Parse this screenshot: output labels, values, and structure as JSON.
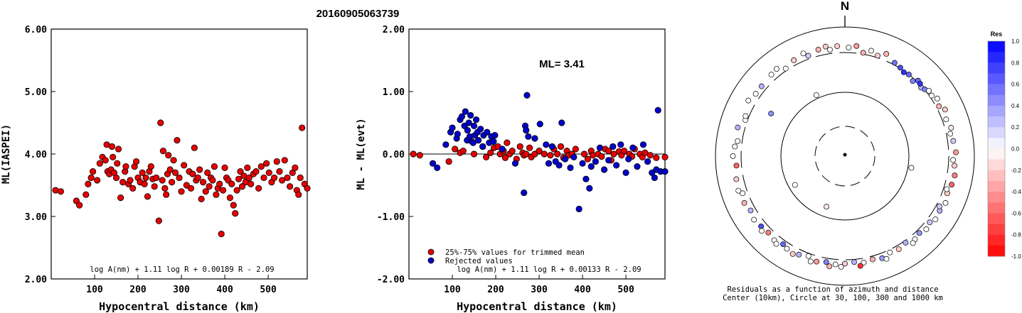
{
  "figure": {
    "title": "20160905063739"
  },
  "colors": {
    "red_fill": "#e60000",
    "blue_fill": "#0000cc",
    "frame": "#000000"
  },
  "chart_data": [
    {
      "type": "scatter",
      "name": "left",
      "xlabel": "Hypocentral distance (km)",
      "ylabel": "ML(IASPEI)",
      "xlim": [
        0,
        590
      ],
      "ylim": [
        2.0,
        6.0
      ],
      "xticks": [
        100,
        200,
        300,
        400,
        500
      ],
      "yticks": [
        2.0,
        3.0,
        4.0,
        5.0,
        6.0
      ],
      "ytick_labels": [
        "2.00",
        "3.00",
        "4.00",
        "5.00",
        "6.00"
      ],
      "formula": "log A(nm) + 1.11 log R + 0.00189 R - 2.09",
      "series": [
        {
          "marker": "red",
          "x": [
            10,
            22,
            58,
            65,
            80,
            85,
            92,
            96,
            106,
            112,
            118,
            125,
            128,
            130,
            134,
            138,
            140,
            142,
            145,
            150,
            152,
            155,
            160,
            165,
            170,
            172,
            178,
            182,
            188,
            192,
            196,
            200,
            205,
            210,
            215,
            218,
            222,
            226,
            230,
            234,
            238,
            242,
            248,
            252,
            256,
            258,
            262,
            265,
            268,
            270,
            274,
            278,
            282,
            286,
            290,
            295,
            300,
            306,
            312,
            318,
            322,
            326,
            330,
            334,
            338,
            342,
            346,
            350,
            356,
            360,
            364,
            368,
            372,
            376,
            380,
            384,
            388,
            392,
            396,
            400,
            404,
            408,
            412,
            416,
            420,
            424,
            428,
            432,
            436,
            440,
            444,
            448,
            452,
            456,
            460,
            466,
            472,
            478,
            484,
            490,
            496,
            502,
            508,
            514,
            520,
            526,
            532,
            538,
            544,
            550,
            556,
            562,
            566,
            570,
            574,
            578,
            584,
            590
          ],
          "y": [
            3.42,
            3.4,
            3.25,
            3.18,
            3.35,
            3.52,
            3.62,
            3.72,
            3.58,
            3.85,
            3.95,
            3.9,
            4.15,
            3.72,
            3.68,
            3.75,
            4.12,
            3.95,
            3.7,
            3.62,
            3.85,
            4.08,
            3.3,
            3.55,
            3.72,
            3.8,
            3.52,
            3.58,
            3.45,
            3.8,
            3.88,
            3.62,
            3.55,
            3.7,
            3.52,
            3.62,
            3.32,
            3.72,
            3.8,
            3.6,
            3.48,
            3.62,
            2.93,
            4.5,
            3.58,
            4.05,
            3.45,
            3.35,
            3.68,
            3.98,
            3.75,
            3.55,
            3.9,
            3.7,
            4.22,
            3.62,
            3.4,
            3.82,
            3.5,
            3.72,
            3.45,
            3.68,
            4.1,
            3.58,
            3.62,
            3.75,
            3.28,
            3.55,
            3.4,
            3.7,
            3.48,
            3.62,
            3.58,
            3.8,
            3.35,
            3.45,
            3.52,
            2.72,
            3.42,
            3.78,
            3.62,
            3.58,
            3.3,
            3.52,
            3.18,
            3.05,
            3.42,
            3.6,
            3.72,
            3.48,
            3.65,
            3.55,
            3.78,
            3.62,
            3.52,
            3.68,
            3.72,
            3.45,
            3.8,
            3.62,
            3.85,
            3.7,
            3.55,
            3.62,
            3.88,
            3.72,
            3.58,
            3.9,
            3.62,
            3.48,
            3.7,
            3.78,
            3.42,
            3.35,
            3.62,
            4.42,
            3.52,
            3.45
          ]
        }
      ]
    },
    {
      "type": "scatter",
      "name": "middle",
      "xlabel": "Hypocentral distance (km)",
      "ylabel": "ML - ML(evt)",
      "xlim": [
        0,
        590
      ],
      "ylim": [
        -2.0,
        2.0
      ],
      "xticks": [
        100,
        200,
        300,
        400,
        500
      ],
      "yticks": [
        -2.0,
        -1.0,
        0.0,
        1.0,
        2.0
      ],
      "ytick_labels": [
        "-2.00",
        "-1.00",
        "0.00",
        "1.00",
        "2.00"
      ],
      "annotation": "ML= 3.41",
      "formula": "log A(nm) + 1.11 log R + 0.00133 R - 2.09",
      "legend": [
        {
          "marker": "red",
          "label": "25%-75% values for trimmed mean"
        },
        {
          "marker": "blue",
          "label": "Rejected values"
        }
      ],
      "series": [
        {
          "marker": "red",
          "x": [
            10,
            25,
            92,
            106,
            118,
            125,
            150,
            170,
            178,
            188,
            196,
            205,
            210,
            218,
            222,
            226,
            232,
            238,
            248,
            256,
            262,
            265,
            270,
            278,
            282,
            290,
            300,
            312,
            326,
            334,
            342,
            350,
            356,
            364,
            368,
            376,
            384,
            404,
            412,
            420,
            424,
            436,
            444,
            452,
            460,
            466,
            472,
            484,
            490,
            496,
            508,
            514,
            520,
            532,
            538,
            544,
            556,
            570,
            590
          ],
          "y": [
            0.0,
            -0.02,
            -0.12,
            0.08,
            0.02,
            0.05,
            0.0,
            0.12,
            -0.05,
            0.02,
            0.1,
            0.12,
            0.0,
            0.05,
            -0.06,
            0.18,
            0.0,
            0.05,
            -0.08,
            0.12,
            0.02,
            -0.02,
            0.0,
            0.1,
            -0.05,
            0.0,
            0.05,
            0.0,
            -0.02,
            0.08,
            0.0,
            0.12,
            -0.06,
            0.05,
            -0.02,
            0.0,
            0.08,
            0.0,
            -0.08,
            0.05,
            -0.02,
            0.0,
            -0.04,
            0.08,
            0.05,
            -0.1,
            0.0,
            0.04,
            -0.02,
            0.05,
            0.0,
            -0.04,
            0.08,
            0.0,
            -0.05,
            0.02,
            -0.02,
            -0.06,
            -0.05
          ]
        },
        {
          "marker": "blue",
          "x": [
            55,
            65,
            85,
            96,
            100,
            110,
            112,
            118,
            122,
            128,
            130,
            134,
            135,
            138,
            140,
            142,
            145,
            148,
            150,
            152,
            155,
            158,
            160,
            165,
            170,
            172,
            180,
            185,
            190,
            195,
            198,
            215,
            245,
            265,
            268,
            270,
            272,
            275,
            290,
            302,
            316,
            322,
            330,
            338,
            346,
            352,
            360,
            372,
            380,
            392,
            400,
            408,
            416,
            420,
            430,
            440,
            450,
            460,
            470,
            478,
            488,
            500,
            506,
            516,
            526,
            540,
            550,
            560,
            566,
            570,
            574,
            580,
            590
          ],
          "y": [
            -0.15,
            -0.22,
            0.15,
            0.35,
            0.42,
            0.25,
            0.32,
            0.55,
            0.6,
            0.45,
            0.68,
            0.22,
            0.38,
            0.5,
            0.28,
            0.62,
            0.2,
            0.18,
            0.45,
            0.3,
            0.55,
            0.35,
            0.22,
            0.4,
            0.12,
            0.3,
            0.35,
            0.18,
            0.28,
            0.2,
            0.3,
            0.08,
            -0.15,
            -0.62,
            0.45,
            0.38,
            0.94,
            0.28,
            0.25,
            0.48,
            0.15,
            -0.15,
            0.12,
            -0.12,
            -0.18,
            0.5,
            -0.08,
            -0.22,
            -0.05,
            -0.88,
            -0.15,
            -0.4,
            -0.55,
            -0.2,
            -0.12,
            0.1,
            -0.25,
            -0.1,
            0.12,
            -0.18,
            0.15,
            -0.3,
            -0.08,
            0.1,
            -0.2,
            0.15,
            -0.12,
            -0.3,
            -0.38,
            -0.25,
            0.7,
            -0.28,
            -0.28
          ]
        }
      ]
    },
    {
      "type": "polar_scatter",
      "name": "right",
      "north_label": "N",
      "caption_line1": "Residuals as a function of azimuth and distance",
      "caption_line2": "Center (10km), Circle at 30, 100, 300 and 1000 km",
      "circles": [
        {
          "km": 30,
          "dashed": true
        },
        {
          "km": 100,
          "dashed": false
        },
        {
          "km": 300,
          "dashed": true
        },
        {
          "km": 1000,
          "dashed": false
        }
      ],
      "colorbar": {
        "title": "Res",
        "ticks": [
          1.0,
          0.8,
          0.6,
          0.4,
          0.2,
          0.0,
          -0.2,
          -0.4,
          -0.6,
          -0.8,
          -1.0
        ],
        "tick_labels": [
          "1.0",
          "0.8",
          "0.6",
          "0.4",
          "0.2",
          "0.0",
          "-0.2",
          "-0.4",
          "-0.6",
          "-0.8",
          "-1.0"
        ]
      },
      "stations": [
        {
          "az": 335,
          "km": 110,
          "res": 0.0
        },
        {
          "az": 240,
          "km": 80,
          "res": 0.0
        },
        {
          "az": 100,
          "km": 110,
          "res": 0.0
        },
        {
          "az": 200,
          "km": 70,
          "res": -0.1
        },
        {
          "az": 300,
          "km": 180,
          "res": 0.45
        },
        {
          "az": 290,
          "km": 330,
          "res": 0.0
        },
        {
          "az": 10,
          "km": 320,
          "res": -0.3
        },
        {
          "az": 18,
          "km": 330,
          "res": -0.2
        },
        {
          "az": 28,
          "km": 330,
          "res": 0.55
        },
        {
          "az": 32,
          "km": 310,
          "res": 0.7
        },
        {
          "az": 35,
          "km": 290,
          "res": 0.8
        },
        {
          "az": 38,
          "km": 300,
          "res": 0.6
        },
        {
          "az": 42,
          "km": 280,
          "res": 0.5
        },
        {
          "az": 48,
          "km": 290,
          "res": 0.3
        },
        {
          "az": 55,
          "km": 330,
          "res": 0.0
        },
        {
          "az": 62,
          "km": 340,
          "res": -0.3
        },
        {
          "az": 70,
          "km": 360,
          "res": 0.0
        },
        {
          "az": 75,
          "km": 400,
          "res": -0.1
        },
        {
          "az": 82,
          "km": 390,
          "res": 0.2
        },
        {
          "az": 88,
          "km": 420,
          "res": -0.4
        },
        {
          "az": 95,
          "km": 400,
          "res": -0.2
        },
        {
          "az": 100,
          "km": 430,
          "res": -0.5
        },
        {
          "az": 105,
          "km": 410,
          "res": -0.6
        },
        {
          "az": 110,
          "km": 380,
          "res": -0.2
        },
        {
          "az": 115,
          "km": 420,
          "res": 0.0
        },
        {
          "az": 120,
          "km": 390,
          "res": 0.3
        },
        {
          "az": 125,
          "km": 410,
          "res": 0.0
        },
        {
          "az": 128,
          "km": 360,
          "res": 0.2
        },
        {
          "az": 132,
          "km": 390,
          "res": 0.0
        },
        {
          "az": 136,
          "km": 350,
          "res": 0.4
        },
        {
          "az": 140,
          "km": 380,
          "res": 0.0
        },
        {
          "az": 145,
          "km": 330,
          "res": 0.3
        },
        {
          "az": 150,
          "km": 360,
          "res": -0.2
        },
        {
          "az": 155,
          "km": 340,
          "res": 0.0
        },
        {
          "az": 160,
          "km": 380,
          "res": 0.4
        },
        {
          "az": 165,
          "km": 350,
          "res": -0.3
        },
        {
          "az": 170,
          "km": 370,
          "res": 0.0
        },
        {
          "az": 175,
          "km": 340,
          "res": 0.3
        },
        {
          "az": 180,
          "km": 360,
          "res": -0.2
        },
        {
          "az": 185,
          "km": 380,
          "res": 0.0
        },
        {
          "az": 190,
          "km": 360,
          "res": 0.5
        },
        {
          "az": 195,
          "km": 390,
          "res": -0.4
        },
        {
          "az": 200,
          "km": 340,
          "res": 0.0
        },
        {
          "az": 205,
          "km": 380,
          "res": 0.3
        },
        {
          "az": 208,
          "km": 420,
          "res": -0.2
        },
        {
          "az": 212,
          "km": 390,
          "res": 0.0
        },
        {
          "az": 215,
          "km": 360,
          "res": 0.6
        },
        {
          "az": 220,
          "km": 400,
          "res": 0.0
        },
        {
          "az": 225,
          "km": 370,
          "res": -0.5
        },
        {
          "az": 230,
          "km": 390,
          "res": 0.7
        },
        {
          "az": 235,
          "km": 420,
          "res": 0.0
        },
        {
          "az": 240,
          "km": 380,
          "res": 0.3
        },
        {
          "az": 245,
          "km": 420,
          "res": -0.3
        },
        {
          "az": 250,
          "km": 380,
          "res": 0.0
        },
        {
          "az": 258,
          "km": 420,
          "res": -0.2
        },
        {
          "az": 265,
          "km": 380,
          "res": -0.6
        },
        {
          "az": 270,
          "km": 440,
          "res": 0.0
        },
        {
          "az": 278,
          "km": 370,
          "res": 0.0
        },
        {
          "az": 285,
          "km": 420,
          "res": 0.3
        },
        {
          "az": 292,
          "km": 350,
          "res": 0.0
        },
        {
          "az": 300,
          "km": 430,
          "res": 0.0
        },
        {
          "az": 310,
          "km": 380,
          "res": 0.3
        },
        {
          "az": 318,
          "km": 400,
          "res": 0.0
        },
        {
          "az": 326,
          "km": 330,
          "res": 0.0
        },
        {
          "az": 332,
          "km": 380,
          "res": -0.2
        },
        {
          "az": 340,
          "km": 350,
          "res": 0.2
        },
        {
          "az": 346,
          "km": 400,
          "res": -0.3
        },
        {
          "az": 352,
          "km": 360,
          "res": 0.0
        },
        {
          "az": 356,
          "km": 410,
          "res": -0.2
        },
        {
          "az": 2,
          "km": 380,
          "res": 0.0
        },
        {
          "az": 6,
          "km": 420,
          "res": -0.4
        },
        {
          "az": 14,
          "km": 380,
          "res": 0.0
        },
        {
          "az": 22,
          "km": 410,
          "res": -0.3
        },
        {
          "az": 58,
          "km": 380,
          "res": 0.0
        },
        {
          "az": 65,
          "km": 410,
          "res": -0.2
        },
        {
          "az": 78,
          "km": 360,
          "res": 0.0
        },
        {
          "az": 92,
          "km": 370,
          "res": 0.0
        },
        {
          "az": 108,
          "km": 350,
          "res": 0.0
        },
        {
          "az": 118,
          "km": 350,
          "res": 0.2
        },
        {
          "az": 142,
          "km": 410,
          "res": 0.0
        },
        {
          "az": 158,
          "km": 420,
          "res": 0.0
        },
        {
          "az": 172,
          "km": 420,
          "res": -0.8
        },
        {
          "az": 182,
          "km": 420,
          "res": 0.0
        },
        {
          "az": 188,
          "km": 430,
          "res": -0.3
        },
        {
          "az": 198,
          "km": 420,
          "res": 0.0
        },
        {
          "az": 218,
          "km": 430,
          "res": 0.0
        },
        {
          "az": 228,
          "km": 440,
          "res": 0.0
        },
        {
          "az": 252,
          "km": 440,
          "res": 0.0
        },
        {
          "az": 275,
          "km": 410,
          "res": 0.0
        },
        {
          "az": 305,
          "km": 380,
          "res": 0.0
        },
        {
          "az": 322,
          "km": 420,
          "res": 0.0
        },
        {
          "az": 338,
          "km": 420,
          "res": 0.0
        },
        {
          "az": 350,
          "km": 430,
          "res": -0.2
        },
        {
          "az": 44,
          "km": 320,
          "res": 0.6
        },
        {
          "az": 46,
          "km": 310,
          "res": 0.8
        },
        {
          "az": 50,
          "km": 305,
          "res": 0.5
        },
        {
          "az": 52,
          "km": 340,
          "res": 0.0
        }
      ]
    }
  ]
}
